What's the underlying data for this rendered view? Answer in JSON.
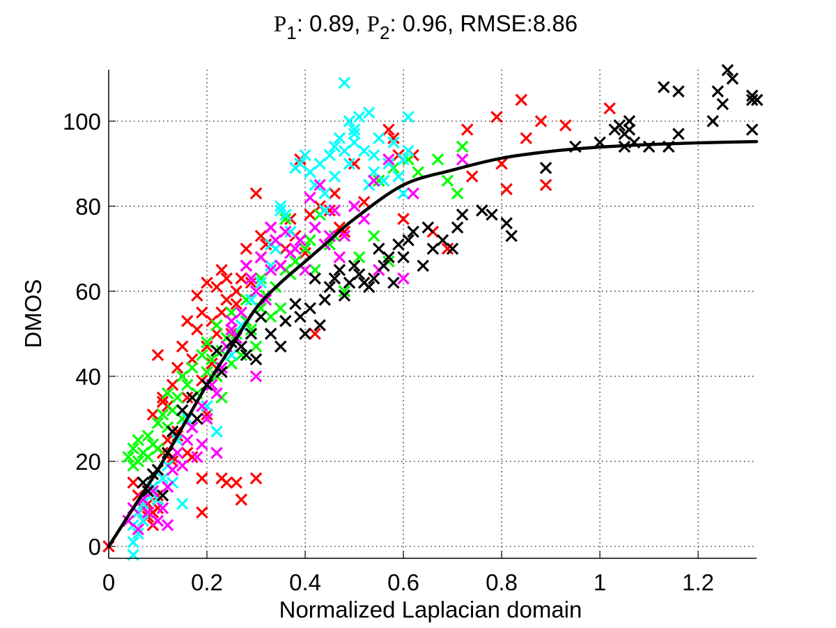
{
  "chart_data": {
    "type": "scatter",
    "title": {
      "parts": [
        {
          "text": "P",
          "style": "serif"
        },
        {
          "text": "1",
          "style": "sub"
        },
        {
          "text": ": 0.89, ",
          "style": "sans"
        },
        {
          "text": "P",
          "style": "serif"
        },
        {
          "text": "2",
          "style": "sub"
        },
        {
          "text": ": 0.96, RMSE:8.86",
          "style": "sans"
        }
      ],
      "full": "P1: 0.89, P2: 0.96, RMSE:8.86"
    },
    "xlabel": "Normalized Laplacian domain",
    "ylabel": "DMOS",
    "xlim": [
      0,
      1.319
    ],
    "ylim": [
      -2.8,
      112.1
    ],
    "xticks": [
      0,
      0.2,
      0.4,
      0.6,
      0.8,
      1,
      1.2
    ],
    "xtick_labels": [
      "0",
      "0.2",
      "0.4",
      "0.6",
      "0.8",
      "1",
      "1.2"
    ],
    "yticks": [
      0,
      20,
      40,
      60,
      80,
      100
    ],
    "ytick_labels": [
      "0",
      "20",
      "40",
      "60",
      "80",
      "100"
    ],
    "grid": true,
    "marker": "x",
    "fit_curve": {
      "name": "logistic fit",
      "color": "#000000",
      "x": [
        0,
        0.05,
        0.1,
        0.15,
        0.2,
        0.25,
        0.3,
        0.35,
        0.4,
        0.45,
        0.5,
        0.6,
        0.7,
        0.8,
        0.9,
        1.0,
        1.1,
        1.2,
        1.319
      ],
      "y": [
        0,
        9,
        18,
        28,
        38,
        47,
        56,
        62,
        67,
        72,
        77,
        85,
        88.5,
        91.3,
        92.9,
        93.9,
        94.5,
        94.9,
        95.2
      ]
    },
    "series": [
      {
        "name": "red",
        "color": "#ff0000",
        "x": [
          0.0,
          0.05,
          0.06,
          0.06,
          0.07,
          0.07,
          0.07,
          0.08,
          0.08,
          0.08,
          0.09,
          0.09,
          0.09,
          0.1,
          0.1,
          0.1,
          0.11,
          0.11,
          0.12,
          0.12,
          0.13,
          0.13,
          0.14,
          0.14,
          0.15,
          0.15,
          0.16,
          0.16,
          0.17,
          0.17,
          0.18,
          0.18,
          0.19,
          0.19,
          0.2,
          0.2,
          0.21,
          0.21,
          0.22,
          0.22,
          0.23,
          0.23,
          0.24,
          0.24,
          0.25,
          0.26,
          0.26,
          0.27,
          0.28,
          0.28,
          0.29,
          0.3,
          0.31,
          0.31,
          0.32,
          0.33,
          0.34,
          0.35,
          0.36,
          0.37,
          0.38,
          0.39,
          0.4,
          0.41,
          0.42,
          0.43,
          0.44,
          0.45,
          0.46,
          0.47,
          0.48,
          0.5,
          0.52,
          0.55,
          0.57,
          0.58,
          0.59,
          0.6,
          0.62,
          0.66,
          0.69,
          0.73,
          0.74,
          0.79,
          0.8,
          0.81,
          0.84,
          0.85,
          0.88,
          0.89,
          0.93,
          1.02,
          0.42,
          0.19,
          0.23,
          0.24,
          0.26,
          0.3,
          0.19,
          0.09,
          0.27,
          0.13,
          0.16,
          0.14,
          0.11,
          0.17,
          0.2
        ],
        "y": [
          0,
          15,
          8,
          12,
          6,
          9,
          11,
          7,
          10,
          13,
          5,
          8,
          31,
          9,
          45,
          12,
          22,
          35,
          25,
          33,
          20,
          38,
          27,
          42,
          30,
          47,
          35,
          53,
          21,
          44,
          51,
          59,
          39,
          55,
          47,
          62,
          43,
          53,
          50,
          61,
          55,
          65,
          58,
          63,
          50,
          57,
          60,
          63,
          66,
          70,
          62,
          83,
          68,
          73,
          71,
          75,
          72,
          66,
          70,
          77,
          73,
          91,
          69,
          78,
          75,
          80,
          71,
          79,
          83,
          75,
          74,
          90,
          81,
          86,
          98,
          96,
          92,
          77,
          92,
          74,
          70,
          98,
          87,
          101,
          90,
          84,
          105,
          96,
          100,
          85,
          99,
          103,
          50,
          16,
          16,
          15,
          15,
          16,
          8,
          14,
          11,
          21,
          22,
          26,
          34,
          28,
          31
        ]
      },
      {
        "name": "green",
        "color": "#00ff00",
        "x": [
          0.04,
          0.05,
          0.05,
          0.06,
          0.06,
          0.07,
          0.08,
          0.08,
          0.09,
          0.1,
          0.1,
          0.11,
          0.12,
          0.12,
          0.13,
          0.14,
          0.15,
          0.15,
          0.16,
          0.17,
          0.18,
          0.19,
          0.2,
          0.2,
          0.21,
          0.22,
          0.22,
          0.23,
          0.24,
          0.25,
          0.25,
          0.26,
          0.27,
          0.28,
          0.28,
          0.29,
          0.3,
          0.31,
          0.31,
          0.32,
          0.33,
          0.34,
          0.35,
          0.36,
          0.37,
          0.38,
          0.39,
          0.4,
          0.41,
          0.42,
          0.43,
          0.45,
          0.46,
          0.48,
          0.51,
          0.54,
          0.58,
          0.61,
          0.63,
          0.67,
          0.69,
          0.71,
          0.72,
          0.57,
          0.55,
          0.36,
          0.23
        ],
        "y": [
          21,
          23,
          19,
          20,
          25,
          22,
          21,
          26,
          24,
          29,
          23,
          31,
          28,
          36,
          32,
          35,
          30,
          40,
          38,
          42,
          36,
          45,
          41,
          48,
          44,
          40,
          52,
          46,
          49,
          43,
          55,
          50,
          45,
          53,
          58,
          51,
          47,
          56,
          63,
          59,
          54,
          61,
          56,
          65,
          64,
          67,
          66,
          70,
          72,
          65,
          78,
          71,
          73,
          60,
          68,
          73,
          89,
          91,
          88,
          91,
          86,
          83,
          94,
          67,
          86,
          77,
          35
        ]
      },
      {
        "name": "cyan",
        "color": "#00ffff",
        "x": [
          0.05,
          0.05,
          0.05,
          0.06,
          0.06,
          0.07,
          0.07,
          0.08,
          0.09,
          0.1,
          0.11,
          0.12,
          0.13,
          0.14,
          0.15,
          0.16,
          0.17,
          0.2,
          0.22,
          0.23,
          0.25,
          0.27,
          0.29,
          0.31,
          0.33,
          0.34,
          0.35,
          0.36,
          0.37,
          0.38,
          0.39,
          0.4,
          0.41,
          0.42,
          0.43,
          0.44,
          0.45,
          0.46,
          0.46,
          0.47,
          0.48,
          0.48,
          0.49,
          0.49,
          0.5,
          0.5,
          0.5,
          0.51,
          0.52,
          0.53,
          0.53,
          0.54,
          0.54,
          0.55,
          0.56,
          0.57,
          0.58,
          0.59,
          0.6,
          0.6,
          0.61,
          0.61,
          0.44,
          0.42,
          0.33,
          0.35
        ],
        "y": [
          -2,
          1,
          5,
          3,
          8,
          10,
          6,
          12,
          14,
          11,
          16,
          19,
          15,
          25,
          10,
          30,
          28,
          33,
          27,
          42,
          45,
          52,
          58,
          62,
          66,
          70,
          80,
          78,
          74,
          89,
          90,
          92,
          88,
          85,
          90,
          83,
          92,
          94,
          87,
          96,
          109,
          93,
          100,
          90,
          95,
          97,
          98,
          101,
          93,
          85,
          102,
          88,
          92,
          96,
          86,
          90,
          95,
          87,
          91,
          83,
          93,
          101,
          79,
          75,
          71,
          79
        ]
      },
      {
        "name": "magenta",
        "color": "#ff00ff",
        "x": [
          0.04,
          0.05,
          0.06,
          0.07,
          0.08,
          0.09,
          0.1,
          0.11,
          0.12,
          0.13,
          0.14,
          0.15,
          0.16,
          0.17,
          0.18,
          0.19,
          0.2,
          0.21,
          0.22,
          0.23,
          0.24,
          0.25,
          0.26,
          0.27,
          0.28,
          0.29,
          0.3,
          0.31,
          0.32,
          0.33,
          0.34,
          0.35,
          0.36,
          0.37,
          0.38,
          0.39,
          0.4,
          0.41,
          0.42,
          0.43,
          0.44,
          0.45,
          0.46,
          0.47,
          0.48,
          0.5,
          0.52,
          0.54,
          0.55,
          0.57,
          0.6,
          0.62,
          0.72,
          0.3,
          0.33,
          0.25,
          0.22,
          0.19,
          0.12
        ],
        "y": [
          6,
          9,
          4,
          11,
          8,
          13,
          6,
          9,
          14,
          18,
          22,
          19,
          25,
          28,
          21,
          33,
          30,
          38,
          36,
          42,
          47,
          51,
          49,
          55,
          66,
          63,
          60,
          68,
          58,
          75,
          72,
          66,
          74,
          69,
          70,
          72,
          65,
          82,
          75,
          85,
          71,
          73,
          79,
          68,
          73,
          80,
          77,
          86,
          65,
          91,
          63,
          83,
          91,
          40,
          65,
          53,
          22,
          24,
          5
        ]
      },
      {
        "name": "black",
        "color": "#000000",
        "x": [
          0.07,
          0.08,
          0.09,
          0.1,
          0.11,
          0.12,
          0.13,
          0.15,
          0.17,
          0.18,
          0.2,
          0.22,
          0.23,
          0.25,
          0.27,
          0.28,
          0.29,
          0.3,
          0.31,
          0.33,
          0.35,
          0.36,
          0.38,
          0.39,
          0.4,
          0.41,
          0.42,
          0.43,
          0.44,
          0.45,
          0.46,
          0.47,
          0.48,
          0.49,
          0.5,
          0.51,
          0.52,
          0.53,
          0.54,
          0.55,
          0.56,
          0.57,
          0.58,
          0.59,
          0.6,
          0.61,
          0.62,
          0.64,
          0.65,
          0.66,
          0.68,
          0.7,
          0.71,
          0.72,
          0.76,
          0.78,
          0.81,
          0.82,
          0.89,
          0.95,
          1.0,
          1.04,
          1.05,
          1.05,
          1.06,
          1.07,
          1.1,
          1.13,
          1.14,
          1.16,
          1.16,
          1.23,
          1.24,
          1.25,
          1.26,
          1.27,
          1.31,
          1.31,
          1.32,
          1.31,
          1.06,
          1.03
        ],
        "y": [
          15,
          13,
          17,
          18,
          12,
          22,
          27,
          32,
          35,
          30,
          38,
          46,
          41,
          48,
          47,
          45,
          50,
          44,
          54,
          50,
          47,
          53,
          57,
          54,
          50,
          56,
          63,
          52,
          58,
          61,
          63,
          65,
          59,
          62,
          66,
          64,
          62,
          61,
          63,
          70,
          66,
          68,
          62,
          71,
          68,
          72,
          74,
          66,
          75,
          70,
          72,
          70,
          75,
          78,
          79,
          78,
          76,
          73,
          89,
          94,
          95,
          99,
          97,
          94,
          98,
          95,
          94,
          108,
          94,
          107,
          97,
          100,
          107,
          104,
          112,
          110,
          105,
          106,
          105,
          98,
          100,
          98
        ]
      }
    ]
  }
}
